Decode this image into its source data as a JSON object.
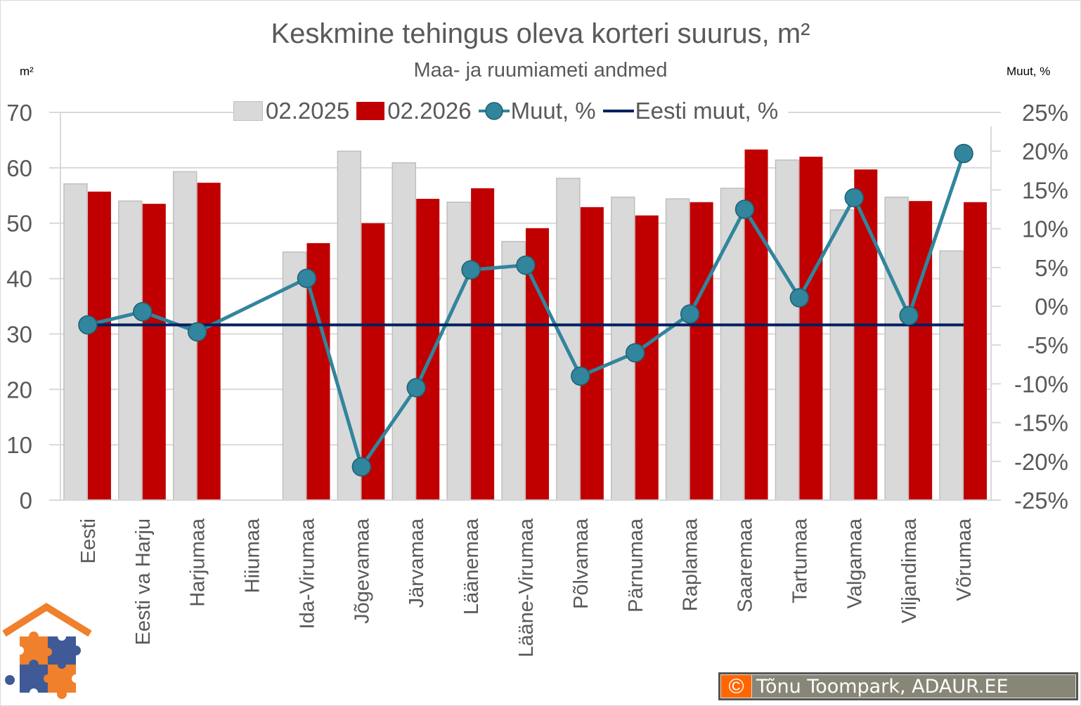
{
  "header": {
    "title": "Keskmine tehingus oleva korteri suurus, m²",
    "subtitle": "Maa- ja ruumiameti andmed",
    "unit_left": "m²",
    "unit_right": "Muut, %"
  },
  "legend": {
    "items": [
      {
        "label": "02.2025",
        "type": "bar",
        "color": "#d9d9d9"
      },
      {
        "label": "02.2026",
        "type": "bar",
        "color": "#c00000"
      },
      {
        "label": "Muut, %",
        "type": "line-marker",
        "color": "#31859c"
      },
      {
        "label": "Eesti muut, %",
        "type": "line",
        "color": "#002060"
      }
    ]
  },
  "axes": {
    "left_ticks": [
      "0",
      "10",
      "20",
      "30",
      "40",
      "50",
      "60",
      "70"
    ],
    "right_ticks": [
      "-25%",
      "-20%",
      "-15%",
      "-10%",
      "-5%",
      "0%",
      "5%",
      "10%",
      "15%",
      "20%",
      "25%"
    ]
  },
  "credit": {
    "icon": "©",
    "text": "Tõnu Toompark, ADAUR.EE"
  },
  "colors": {
    "bar_2025": "#d9d9d9",
    "bar_2025_border": "#bfbfbf",
    "bar_2026": "#c00000",
    "line_change": "#31859c",
    "line_eesti": "#002060",
    "grid": "#d9d9d9",
    "text": "#595959"
  },
  "chart_data": {
    "type": "bar",
    "title": "Keskmine tehingus oleva korteri suurus, m²",
    "subtitle": "Maa- ja ruumiameti andmed",
    "xlabel": "",
    "ylabel": "m²",
    "ylabel_right": "Muut, %",
    "ylim": [
      0,
      70
    ],
    "ylim_right": [
      -25,
      25
    ],
    "grid": true,
    "legend_position": "top",
    "categories": [
      "Eesti",
      "Eesti va Harju",
      "Harjumaa",
      "Hiiumaa",
      "Ida-Virumaa",
      "Jõgevamaa",
      "Järvamaa",
      "Läänemaa",
      "Lääne-Virumaa",
      "Põlvamaa",
      "Pärnumaa",
      "Raplamaa",
      "Saaremaa",
      "Tartumaa",
      "Valgamaa",
      "Viljandimaa",
      "Võrumaa"
    ],
    "series": [
      {
        "name": "02.2025",
        "type": "bar",
        "axis": "left",
        "values": [
          57.1,
          54.0,
          59.3,
          null,
          44.8,
          63.0,
          60.9,
          53.8,
          46.7,
          58.1,
          54.7,
          54.4,
          56.3,
          61.4,
          52.4,
          54.7,
          45.0
        ]
      },
      {
        "name": "02.2026",
        "type": "bar",
        "axis": "left",
        "values": [
          55.7,
          53.5,
          57.3,
          null,
          46.4,
          50.0,
          54.4,
          56.3,
          49.1,
          52.9,
          51.4,
          53.8,
          63.3,
          62.0,
          59.7,
          54.0,
          53.8
        ]
      },
      {
        "name": "Muut, %",
        "type": "line",
        "axis": "right",
        "values": [
          -2.4,
          -0.7,
          -3.3,
          null,
          3.6,
          -20.7,
          -10.5,
          4.7,
          5.3,
          -9.0,
          -6.0,
          -1.0,
          12.5,
          1.1,
          14.0,
          -1.2,
          19.7
        ]
      },
      {
        "name": "Eesti muut, %",
        "type": "line",
        "axis": "right",
        "values": [
          -2.4,
          -2.4,
          -2.4,
          -2.4,
          -2.4,
          -2.4,
          -2.4,
          -2.4,
          -2.4,
          -2.4,
          -2.4,
          -2.4,
          -2.4,
          -2.4,
          -2.4,
          -2.4,
          -2.4
        ]
      }
    ]
  }
}
